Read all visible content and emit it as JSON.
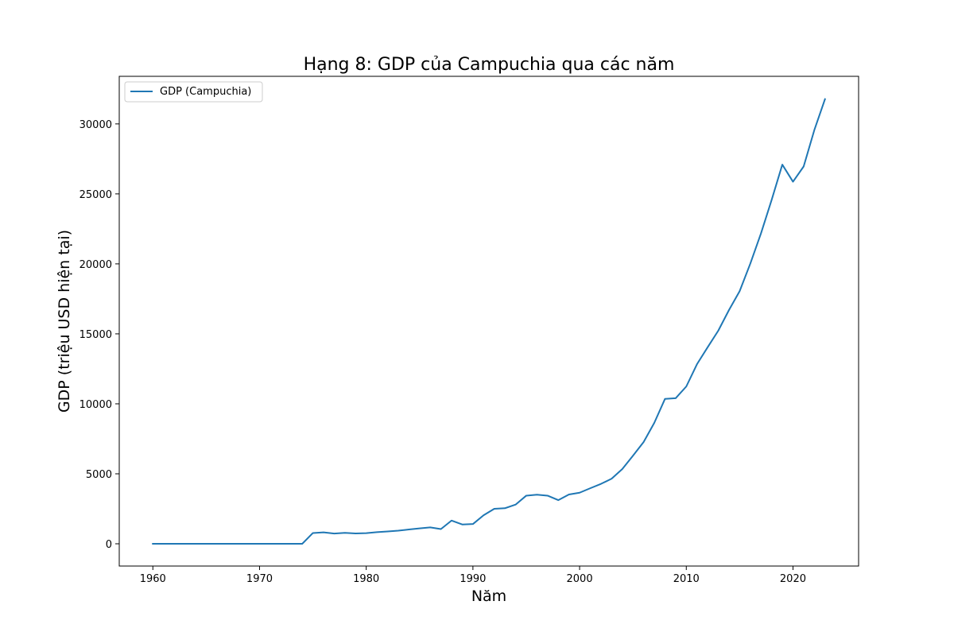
{
  "chart_data": {
    "type": "line",
    "title": "Hạng 8: GDP của Campuchia qua các năm",
    "xlabel": "Năm",
    "ylabel": "GDP (triệu USD hiện tại)",
    "xlim": [
      1956.85,
      2026.15
    ],
    "ylim": [
      -1590,
      33400
    ],
    "x_ticks": [
      1960,
      1970,
      1980,
      1990,
      2000,
      2010,
      2020
    ],
    "y_ticks": [
      0,
      5000,
      10000,
      15000,
      20000,
      25000,
      30000
    ],
    "grid": false,
    "legend_position": "top-left",
    "series": [
      {
        "name": "GDP (Campuchia)",
        "color": "#1f77b4",
        "x": [
          1960,
          1961,
          1962,
          1963,
          1964,
          1965,
          1966,
          1967,
          1968,
          1969,
          1970,
          1971,
          1972,
          1973,
          1974,
          1975,
          1976,
          1977,
          1978,
          1979,
          1980,
          1981,
          1982,
          1983,
          1984,
          1985,
          1986,
          1987,
          1988,
          1989,
          1990,
          1991,
          1992,
          1993,
          1994,
          1995,
          1996,
          1997,
          1998,
          1999,
          2000,
          2001,
          2002,
          2003,
          2004,
          2005,
          2006,
          2007,
          2008,
          2009,
          2010,
          2011,
          2012,
          2013,
          2014,
          2015,
          2016,
          2017,
          2018,
          2019,
          2020,
          2021,
          2022,
          2023
        ],
        "values": [
          0,
          0,
          0,
          0,
          0,
          0,
          0,
          0,
          0,
          0,
          0,
          0,
          0,
          0,
          0,
          770,
          820,
          730,
          780,
          740,
          760,
          830,
          880,
          940,
          1020,
          1100,
          1170,
          1050,
          1660,
          1380,
          1410,
          2040,
          2500,
          2540,
          2800,
          3440,
          3510,
          3440,
          3120,
          3520,
          3650,
          3970,
          4280,
          4650,
          5340,
          6290,
          7270,
          8640,
          10350,
          10400,
          11240,
          12830,
          14040,
          15230,
          16700,
          18050,
          20020,
          22180,
          24570,
          27090,
          25870,
          26960,
          29560,
          31770
        ]
      }
    ]
  }
}
